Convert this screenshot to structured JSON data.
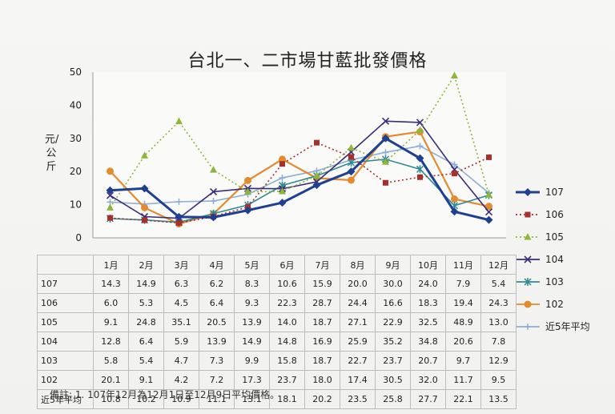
{
  "title": "台北一、二市場甘藍批發價格",
  "note": "備註: 1. 107年12月為12月1日至12月9日平均價格。",
  "chart_data": {
    "type": "line",
    "title": "台北一、二市場甘藍批發價格",
    "ylabel": "元/公斤",
    "ylim": [
      0,
      50
    ],
    "yticks": [
      "0",
      "10",
      "20",
      "30",
      "40",
      "50"
    ],
    "categories": [
      "1月",
      "2月",
      "3月",
      "4月",
      "5月",
      "6月",
      "7月",
      "8月",
      "9月",
      "10月",
      "11月",
      "12月"
    ],
    "series": [
      {
        "name": "107",
        "color": "#1f3f93",
        "style": "solid-diamond",
        "values": [
          14.3,
          14.9,
          6.3,
          6.2,
          8.3,
          10.6,
          15.9,
          20.0,
          30.0,
          24.0,
          7.9,
          5.4
        ]
      },
      {
        "name": "106",
        "color": "#a8302c",
        "style": "dotted-square",
        "values": [
          6.0,
          5.3,
          4.5,
          6.4,
          9.3,
          22.3,
          28.7,
          24.4,
          16.6,
          18.3,
          19.4,
          24.3
        ]
      },
      {
        "name": "105",
        "color": "#8fb63a",
        "style": "dotted-triangle",
        "values": [
          9.1,
          24.8,
          35.1,
          20.5,
          13.9,
          14.0,
          18.7,
          27.1,
          22.9,
          32.5,
          48.9,
          13.0
        ]
      },
      {
        "name": "104",
        "color": "#3a2d7a",
        "style": "solid-x",
        "values": [
          12.8,
          6.4,
          5.9,
          13.9,
          14.9,
          14.8,
          16.9,
          25.9,
          35.2,
          34.8,
          20.6,
          7.8
        ]
      },
      {
        "name": "103",
        "color": "#2d8a93",
        "style": "solid-star",
        "values": [
          5.8,
          5.4,
          4.7,
          7.3,
          9.9,
          15.8,
          18.7,
          22.7,
          23.7,
          20.7,
          9.7,
          12.9
        ]
      },
      {
        "name": "102",
        "color": "#e58a2e",
        "style": "solid-circle",
        "values": [
          20.1,
          9.1,
          4.2,
          7.2,
          17.3,
          23.7,
          18.0,
          17.4,
          30.5,
          32.0,
          11.7,
          9.5
        ]
      },
      {
        "name": "近5年平均",
        "color": "#8eaed8",
        "style": "solid-plus",
        "values": [
          10.8,
          10.2,
          10.9,
          11.1,
          13.1,
          18.1,
          20.2,
          23.5,
          25.8,
          27.7,
          22.1,
          13.5
        ]
      }
    ],
    "table_rows": [
      {
        "label": "107",
        "values": [
          "14.3",
          "14.9",
          "6.3",
          "6.2",
          "8.3",
          "10.6",
          "15.9",
          "20.0",
          "30.0",
          "24.0",
          "7.9",
          "5.4"
        ]
      },
      {
        "label": "106",
        "values": [
          "6.0",
          "5.3",
          "4.5",
          "6.4",
          "9.3",
          "22.3",
          "28.7",
          "24.4",
          "16.6",
          "18.3",
          "19.4",
          "24.3"
        ]
      },
      {
        "label": "105",
        "values": [
          "9.1",
          "24.8",
          "35.1",
          "20.5",
          "13.9",
          "14.0",
          "18.7",
          "27.1",
          "22.9",
          "32.5",
          "48.9",
          "13.0"
        ]
      },
      {
        "label": "104",
        "values": [
          "12.8",
          "6.4",
          "5.9",
          "13.9",
          "14.9",
          "14.8",
          "16.9",
          "25.9",
          "35.2",
          "34.8",
          "20.6",
          "7.8"
        ]
      },
      {
        "label": "103",
        "values": [
          "5.8",
          "5.4",
          "4.7",
          "7.3",
          "9.9",
          "15.8",
          "18.7",
          "22.7",
          "23.7",
          "20.7",
          "9.7",
          "12.9"
        ]
      },
      {
        "label": "102",
        "values": [
          "20.1",
          "9.1",
          "4.2",
          "7.2",
          "17.3",
          "23.7",
          "18.0",
          "17.4",
          "30.5",
          "32.0",
          "11.7",
          "9.5"
        ]
      },
      {
        "label": "近5年平均",
        "values": [
          "10.8",
          "10.2",
          "10.9",
          "11.1",
          "13.1",
          "18.1",
          "20.2",
          "23.5",
          "25.8",
          "27.7",
          "22.1",
          "13.5"
        ]
      }
    ],
    "grid": false,
    "legend": "right"
  }
}
